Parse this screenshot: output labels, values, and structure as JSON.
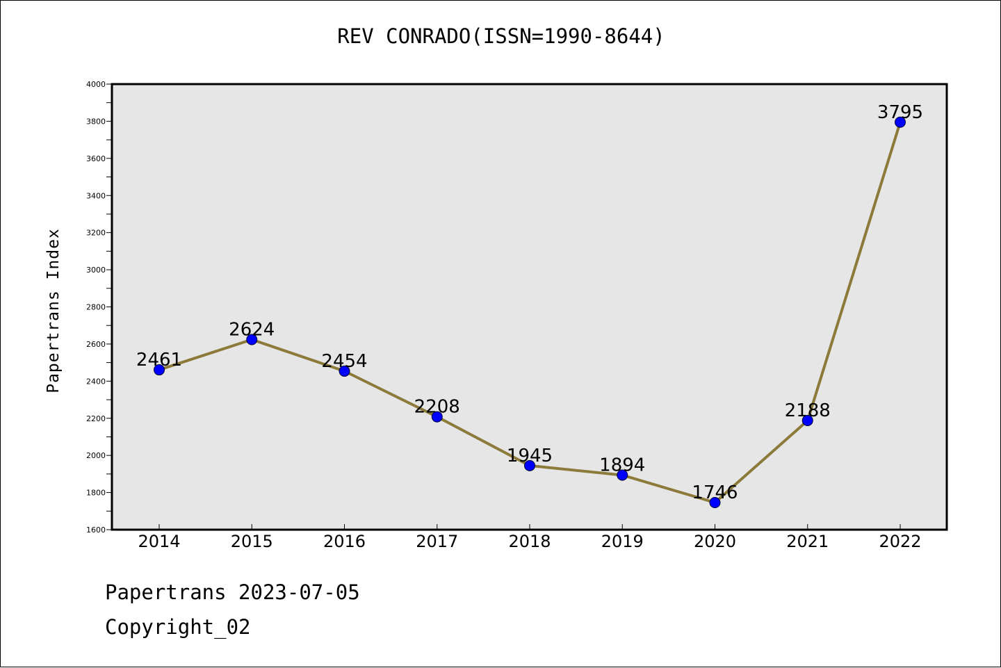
{
  "chart_data": {
    "type": "line",
    "title": "REV CONRADO(ISSN=1990-8644)",
    "ylabel": "Papertrans Index",
    "xlabel": "",
    "categories": [
      "2014",
      "2015",
      "2016",
      "2017",
      "2018",
      "2019",
      "2020",
      "2021",
      "2022"
    ],
    "values": [
      2461,
      2624,
      2454,
      2208,
      1945,
      1894,
      1746,
      2188,
      3795
    ],
    "ylim": [
      1600,
      4000
    ],
    "yticks": [
      1600,
      1800,
      2000,
      2200,
      2400,
      2600,
      2800,
      3000,
      3200,
      3400,
      3600,
      3800,
      4000
    ],
    "grid": false,
    "data_labels": true
  },
  "colors": {
    "plot_background": "#e6e6e6",
    "line": "#8b7a3a",
    "marker": "#0000ff"
  },
  "footer": {
    "date_text": "Papertrans 2023-07-05",
    "copyright_text": "Copyright_02"
  }
}
